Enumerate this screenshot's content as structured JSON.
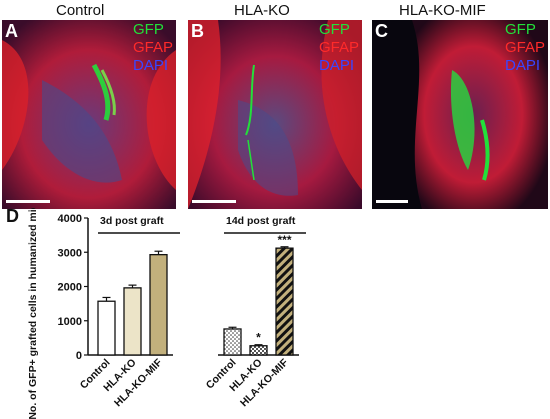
{
  "panels": [
    {
      "letter": "A",
      "title": "Control",
      "legend": [
        "GFP",
        "GFAP",
        "DAPI"
      ]
    },
    {
      "letter": "B",
      "title": "HLA-KO",
      "legend": [
        "GFP",
        "GFAP",
        "DAPI"
      ]
    },
    {
      "letter": "C",
      "title": "HLA-KO-MIF",
      "legend": [
        "GFP",
        "GFAP",
        "DAPI"
      ]
    }
  ],
  "colors": {
    "gfp": "#22e03a",
    "gfap": "#ff2a2a",
    "dapi": "#3a46ff"
  },
  "chart_letter": "D",
  "chart_data": {
    "type": "bar",
    "ylabel": "No. of GFP+ grafted cells in humanized mice with SCI",
    "ylim": [
      0,
      4000
    ],
    "yticks": [
      0,
      1000,
      2000,
      3000,
      4000
    ],
    "groups": [
      {
        "label": "3d post graft",
        "categories": [
          "Control",
          "HLA-KO",
          "HLA-KO-MIF"
        ],
        "values": [
          1570,
          1960,
          2930
        ],
        "errors": [
          110,
          80,
          100
        ],
        "significance": [
          "",
          "",
          ""
        ],
        "fills": [
          "#ffffff",
          "#ece4c8",
          "#c2b07c"
        ]
      },
      {
        "label": "14d post graft",
        "categories": [
          "Control",
          "HLA-KO",
          "HLA-KO-MIF"
        ],
        "values": [
          760,
          270,
          3120
        ],
        "errors": [
          50,
          30,
          40
        ],
        "significance": [
          "",
          "*",
          "***"
        ],
        "fills": [
          "dots",
          "checker",
          "stripes"
        ]
      }
    ]
  }
}
